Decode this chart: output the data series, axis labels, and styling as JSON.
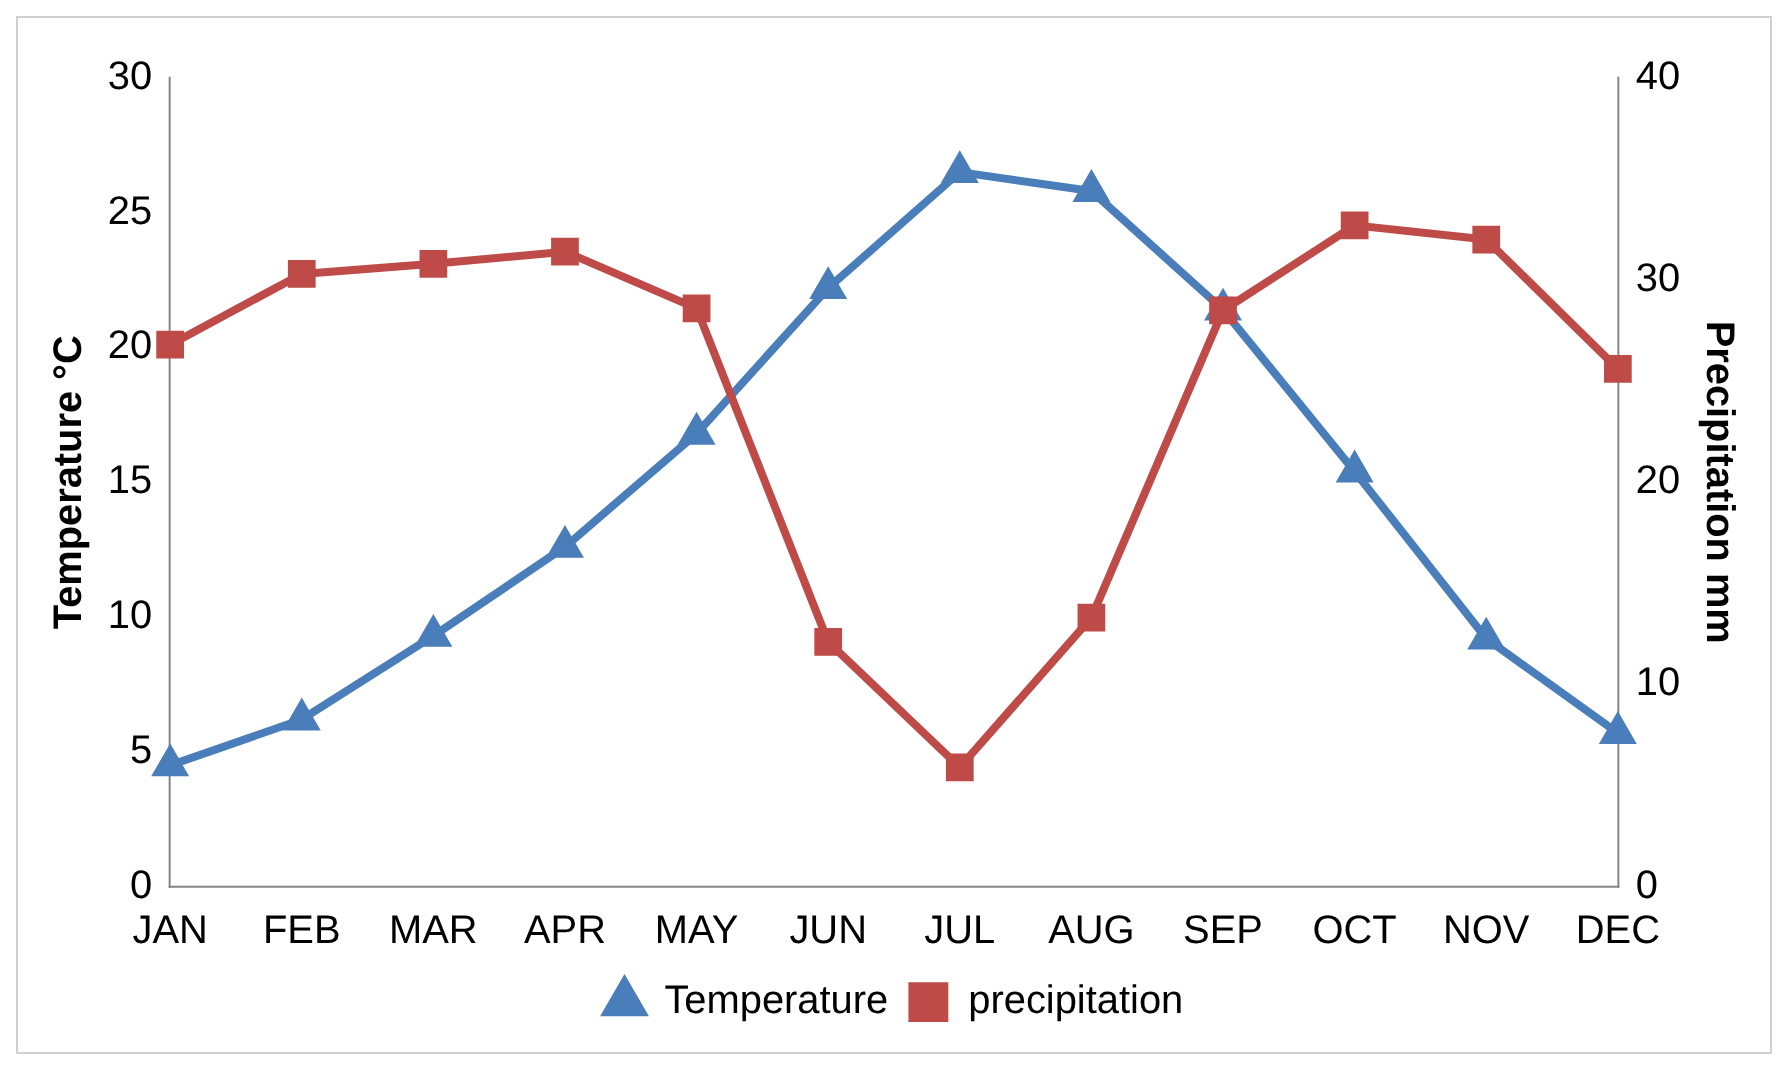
{
  "chart_data": {
    "type": "line",
    "categories": [
      "JAN",
      "FEB",
      "MAR",
      "APR",
      "MAY",
      "JUN",
      "JUL",
      "AUG",
      "SEP",
      "OCT",
      "NOV",
      "DEC"
    ],
    "ylabel": "Temperature °C",
    "y2label": "Precipitation mm",
    "ylim": [
      0,
      30
    ],
    "yticks": [
      0,
      5,
      10,
      15,
      20,
      25,
      30
    ],
    "y2lim": [
      0,
      40
    ],
    "y2ticks": [
      0,
      10,
      20,
      30,
      40
    ],
    "grid": false,
    "legend": "bottom",
    "series": [
      {
        "name": "Temperature",
        "color": "#4a7ebb",
        "marker": "triangle",
        "values": [
          4.5,
          6.2,
          9.3,
          12.6,
          16.8,
          22.2,
          26.5,
          25.8,
          21.4,
          15.4,
          9.2,
          5.7
        ]
      },
      {
        "name": "precipitation",
        "color": "#be4b48",
        "marker": "square",
        "axis": "y2",
        "values": [
          26.8,
          30.3,
          30.8,
          31.4,
          28.6,
          12.1,
          5.9,
          13.3,
          28.5,
          32.7,
          32.0,
          25.6
        ]
      }
    ]
  }
}
